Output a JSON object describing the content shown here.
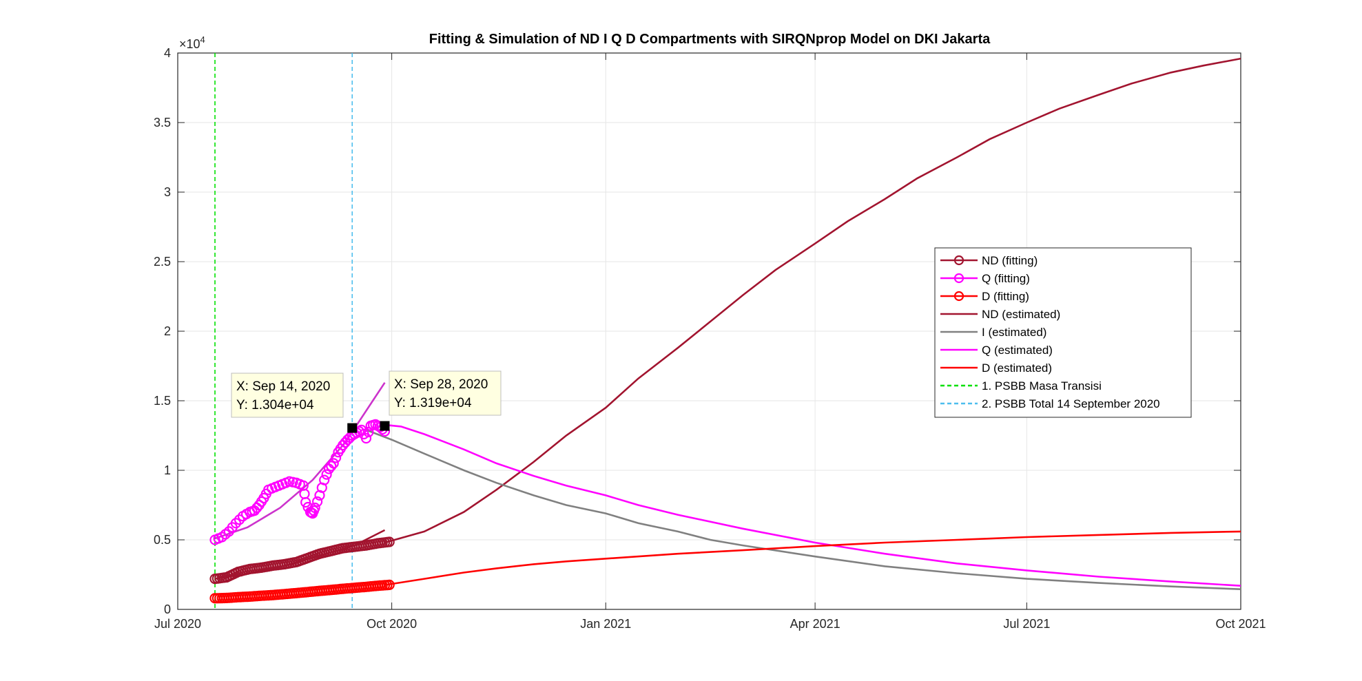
{
  "chart_data": {
    "type": "line",
    "title": "Fitting & Simulation of  ND I Q D Compartments with SIRQNprop Model on DKI Jakarta",
    "xlabel": "",
    "ylabel": "",
    "y_exponent_label": "×10",
    "y_exponent_power": "4",
    "xlim": [
      "2020-07-01",
      "2021-10-01"
    ],
    "ylim": [
      0,
      40000
    ],
    "grid": true,
    "x_ticks": [
      {
        "date": "2020-07-01",
        "label": "Jul 2020"
      },
      {
        "date": "2020-10-01",
        "label": "Oct 2020"
      },
      {
        "date": "2021-01-01",
        "label": "Jan 2021"
      },
      {
        "date": "2021-04-01",
        "label": "Apr 2021"
      },
      {
        "date": "2021-07-01",
        "label": "Jul 2021"
      },
      {
        "date": "2021-10-01",
        "label": "Oct 2021"
      }
    ],
    "y_ticks": [
      {
        "value": 0,
        "label": "0"
      },
      {
        "value": 5000,
        "label": "0.5"
      },
      {
        "value": 10000,
        "label": "1"
      },
      {
        "value": 15000,
        "label": "1.5"
      },
      {
        "value": 20000,
        "label": "2"
      },
      {
        "value": 25000,
        "label": "2.5"
      },
      {
        "value": 30000,
        "label": "3"
      },
      {
        "value": 35000,
        "label": "3.5"
      },
      {
        "value": 40000,
        "label": "4"
      }
    ],
    "legend_position": "right",
    "series": [
      {
        "name": "ND (fitting)",
        "kind": "marker",
        "color": "#A2142F",
        "points": [
          [
            "2020-07-17",
            2200
          ],
          [
            "2020-07-22",
            2300
          ],
          [
            "2020-07-27",
            2700
          ],
          [
            "2020-08-01",
            2900
          ],
          [
            "2020-08-06",
            3000
          ],
          [
            "2020-08-11",
            3150
          ],
          [
            "2020-08-16",
            3250
          ],
          [
            "2020-08-21",
            3400
          ],
          [
            "2020-08-26",
            3700
          ],
          [
            "2020-08-31",
            4000
          ],
          [
            "2020-09-05",
            4200
          ],
          [
            "2020-09-10",
            4400
          ],
          [
            "2020-09-15",
            4500
          ],
          [
            "2020-09-20",
            4600
          ],
          [
            "2020-09-25",
            4750
          ],
          [
            "2020-09-30",
            4850
          ]
        ]
      },
      {
        "name": "Q (fitting)",
        "kind": "marker",
        "color": "#FF00FF",
        "points": [
          [
            "2020-07-17",
            5000
          ],
          [
            "2020-07-20",
            5200
          ],
          [
            "2020-07-23",
            5600
          ],
          [
            "2020-07-26",
            6200
          ],
          [
            "2020-07-29",
            6700
          ],
          [
            "2020-08-01",
            7000
          ],
          [
            "2020-08-03",
            7100
          ],
          [
            "2020-08-05",
            7500
          ],
          [
            "2020-08-07",
            8000
          ],
          [
            "2020-08-09",
            8600
          ],
          [
            "2020-08-12",
            8800
          ],
          [
            "2020-08-15",
            9000
          ],
          [
            "2020-08-18",
            9200
          ],
          [
            "2020-08-21",
            9100
          ],
          [
            "2020-08-24",
            8900
          ],
          [
            "2020-08-25",
            7700
          ],
          [
            "2020-08-27",
            7000
          ],
          [
            "2020-08-28",
            6900
          ],
          [
            "2020-08-29",
            7300
          ],
          [
            "2020-08-31",
            8200
          ],
          [
            "2020-09-02",
            9300
          ],
          [
            "2020-09-04",
            10100
          ],
          [
            "2020-09-06",
            10500
          ],
          [
            "2020-09-08",
            11300
          ],
          [
            "2020-09-10",
            11800
          ],
          [
            "2020-09-12",
            12200
          ],
          [
            "2020-09-14",
            12500
          ],
          [
            "2020-09-16",
            12700
          ],
          [
            "2020-09-18",
            12900
          ],
          [
            "2020-09-20",
            12300
          ],
          [
            "2020-09-22",
            13200
          ],
          [
            "2020-09-24",
            13300
          ],
          [
            "2020-09-26",
            13100
          ],
          [
            "2020-09-28",
            12800
          ]
        ]
      },
      {
        "name": "D (fitting)",
        "kind": "marker",
        "color": "#FF0000",
        "points": [
          [
            "2020-07-17",
            800
          ],
          [
            "2020-07-22",
            820
          ],
          [
            "2020-07-27",
            880
          ],
          [
            "2020-08-01",
            920
          ],
          [
            "2020-08-06",
            980
          ],
          [
            "2020-08-11",
            1030
          ],
          [
            "2020-08-16",
            1100
          ],
          [
            "2020-08-21",
            1170
          ],
          [
            "2020-08-26",
            1250
          ],
          [
            "2020-08-31",
            1330
          ],
          [
            "2020-09-05",
            1400
          ],
          [
            "2020-09-10",
            1480
          ],
          [
            "2020-09-15",
            1550
          ],
          [
            "2020-09-20",
            1620
          ],
          [
            "2020-09-25",
            1700
          ],
          [
            "2020-09-30",
            1760
          ]
        ]
      },
      {
        "name": "ND (estimated)",
        "kind": "line",
        "color": "#A2142F",
        "points": [
          [
            "2020-09-28",
            4800
          ],
          [
            "2020-10-15",
            5600
          ],
          [
            "2020-11-01",
            7000
          ],
          [
            "2020-11-15",
            8600
          ],
          [
            "2020-12-01",
            10600
          ],
          [
            "2020-12-15",
            12500
          ],
          [
            "2021-01-01",
            14500
          ],
          [
            "2021-01-15",
            16600
          ],
          [
            "2021-02-01",
            18800
          ],
          [
            "2021-02-15",
            20700
          ],
          [
            "2021-03-01",
            22600
          ],
          [
            "2021-03-15",
            24400
          ],
          [
            "2021-04-01",
            26300
          ],
          [
            "2021-04-15",
            27900
          ],
          [
            "2021-05-01",
            29500
          ],
          [
            "2021-05-15",
            31000
          ],
          [
            "2021-06-01",
            32500
          ],
          [
            "2021-06-15",
            33800
          ],
          [
            "2021-07-01",
            35000
          ],
          [
            "2021-07-15",
            36000
          ],
          [
            "2021-08-01",
            37000
          ],
          [
            "2021-08-15",
            37800
          ],
          [
            "2021-09-01",
            38600
          ],
          [
            "2021-09-15",
            39100
          ],
          [
            "2021-10-01",
            39600
          ]
        ]
      },
      {
        "name": "I (estimated)",
        "kind": "line",
        "color": "#808080",
        "points": [
          [
            "2020-09-20",
            12900
          ],
          [
            "2020-10-01",
            12200
          ],
          [
            "2020-10-15",
            11200
          ],
          [
            "2020-11-01",
            10000
          ],
          [
            "2020-11-15",
            9100
          ],
          [
            "2020-12-01",
            8200
          ],
          [
            "2020-12-15",
            7500
          ],
          [
            "2021-01-01",
            6900
          ],
          [
            "2021-01-15",
            6200
          ],
          [
            "2021-02-01",
            5600
          ],
          [
            "2021-02-15",
            5000
          ],
          [
            "2021-03-01",
            4600
          ],
          [
            "2021-04-01",
            3800
          ],
          [
            "2021-05-01",
            3100
          ],
          [
            "2021-06-01",
            2600
          ],
          [
            "2021-07-01",
            2200
          ],
          [
            "2021-08-01",
            1900
          ],
          [
            "2021-09-01",
            1650
          ],
          [
            "2021-10-01",
            1450
          ]
        ]
      },
      {
        "name": "Q (estimated)",
        "kind": "line",
        "color": "#FF00FF",
        "points": [
          [
            "2020-09-26",
            13300
          ],
          [
            "2020-10-05",
            13150
          ],
          [
            "2020-10-15",
            12600
          ],
          [
            "2020-11-01",
            11500
          ],
          [
            "2020-11-15",
            10500
          ],
          [
            "2020-12-01",
            9600
          ],
          [
            "2020-12-15",
            8900
          ],
          [
            "2021-01-01",
            8200
          ],
          [
            "2021-01-15",
            7500
          ],
          [
            "2021-02-01",
            6800
          ],
          [
            "2021-03-01",
            5800
          ],
          [
            "2021-04-01",
            4800
          ],
          [
            "2021-05-01",
            4000
          ],
          [
            "2021-06-01",
            3300
          ],
          [
            "2021-07-01",
            2800
          ],
          [
            "2021-08-01",
            2350
          ],
          [
            "2021-09-01",
            2000
          ],
          [
            "2021-10-01",
            1700
          ]
        ]
      },
      {
        "name": "D (estimated)",
        "kind": "line",
        "color": "#FF0000",
        "points": [
          [
            "2020-09-28",
            1750
          ],
          [
            "2020-10-15",
            2200
          ],
          [
            "2020-11-01",
            2650
          ],
          [
            "2020-11-15",
            2950
          ],
          [
            "2020-12-01",
            3250
          ],
          [
            "2020-12-15",
            3450
          ],
          [
            "2021-01-01",
            3650
          ],
          [
            "2021-02-01",
            4000
          ],
          [
            "2021-03-01",
            4250
          ],
          [
            "2021-04-01",
            4550
          ],
          [
            "2021-05-01",
            4800
          ],
          [
            "2021-06-01",
            5000
          ],
          [
            "2021-07-01",
            5200
          ],
          [
            "2021-08-01",
            5350
          ],
          [
            "2021-09-01",
            5500
          ],
          [
            "2021-10-01",
            5600
          ]
        ]
      },
      {
        "name": "1. PSBB Masa Transisi",
        "kind": "vline",
        "color": "#00E000",
        "date": "2020-07-17"
      },
      {
        "name": "2. PSBB Total 14 September 2020",
        "kind": "vline",
        "color": "#4DBEEE",
        "date": "2020-09-14"
      }
    ],
    "fit_lines": [
      {
        "color": "#CC33CC",
        "points": [
          [
            "2020-07-17",
            5100
          ],
          [
            "2020-07-31",
            5900
          ],
          [
            "2020-08-14",
            7300
          ],
          [
            "2020-08-28",
            9300
          ],
          [
            "2020-09-11",
            12000
          ],
          [
            "2020-09-28",
            16300
          ]
        ]
      },
      {
        "color": "#A2142F",
        "points": [
          [
            "2020-07-17",
            2200
          ],
          [
            "2020-08-01",
            2600
          ],
          [
            "2020-08-15",
            3100
          ],
          [
            "2020-09-01",
            3900
          ],
          [
            "2020-09-15",
            4600
          ],
          [
            "2020-09-28",
            5700
          ]
        ]
      }
    ],
    "datatips": [
      {
        "x_label": "X: Sep 14, 2020",
        "y_label": "Y: 1.304e+04",
        "date": "2020-09-14",
        "value": 13040
      },
      {
        "x_label": "X: Sep 28, 2020",
        "y_label": "Y: 1.319e+04",
        "date": "2020-09-28",
        "value": 13190
      }
    ]
  }
}
